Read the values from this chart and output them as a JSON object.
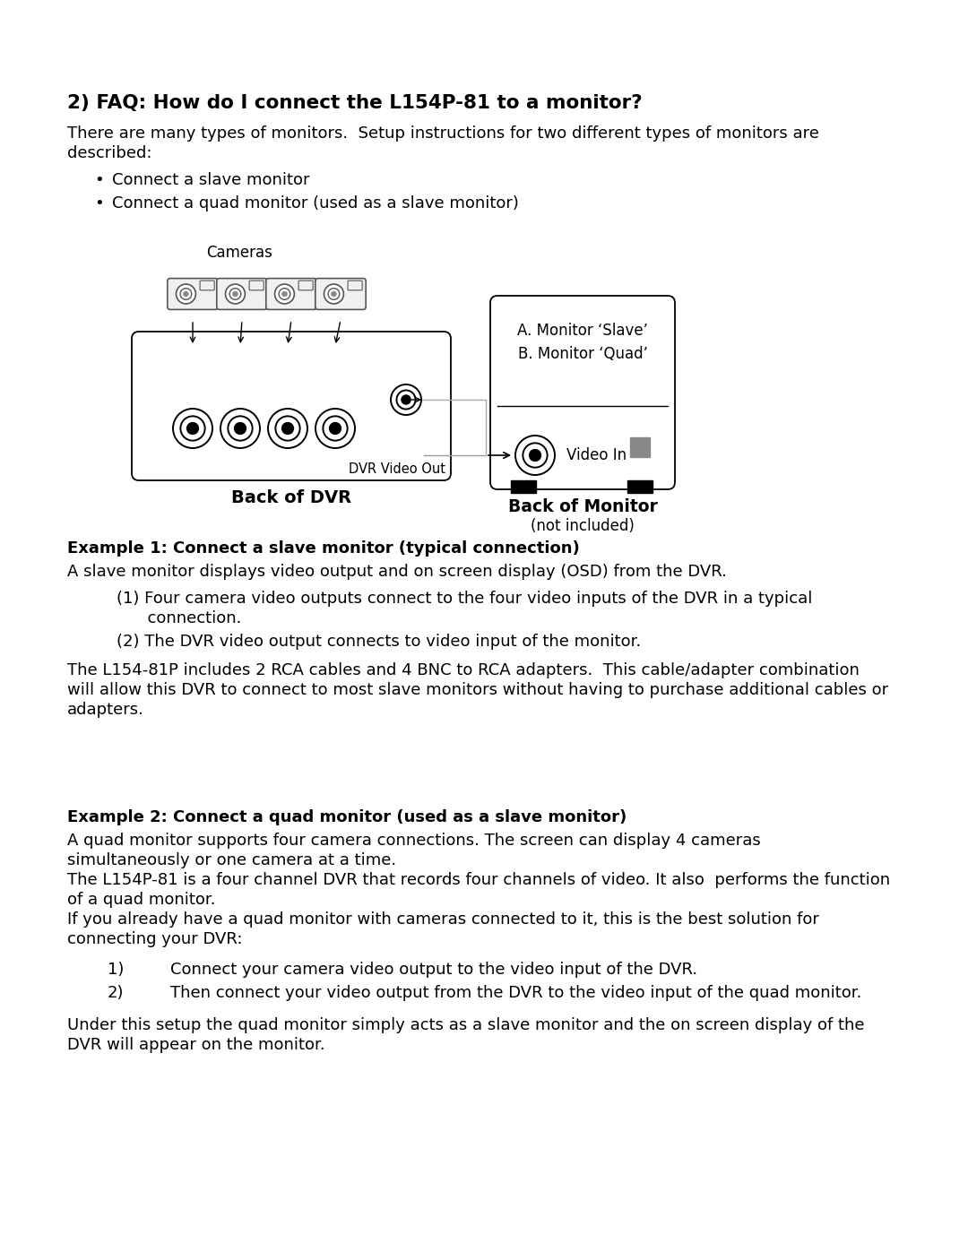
{
  "bg_color": "#ffffff",
  "title": "2) FAQ: How do I connect the L154P-81 to a monitor?",
  "intro_line1": "There are many types of monitors.  Setup instructions for two different types of monitors are",
  "intro_line2": "described:",
  "bullet1": "Connect a slave monitor",
  "bullet2": "Connect a quad monitor (used as a slave monitor)",
  "cameras_label": "Cameras",
  "dvr_video_out_label": "DVR Video Out",
  "back_dvr_label": "Back of DVR",
  "monitor_label_a": "A. Monitor ‘Slave’",
  "monitor_label_b": "B. Monitor ‘Quad’",
  "video_in_label": "Video In",
  "back_monitor_line1": "Back of Monitor",
  "back_monitor_line2": "(not included)",
  "ex1_title": "Example 1: Connect a slave monitor (typical connection)",
  "ex1_intro": "A slave monitor displays video output and on screen display (OSD) from the DVR.",
  "ex1_item1_line1": "(1) Four camera video outputs connect to the four video inputs of the DVR in a typical",
  "ex1_item1_line2": "      connection.",
  "ex1_item2": "(2) The DVR video output connects to video input of the monitor.",
  "ex1_para_line1": "The L154-81P includes 2 RCA cables and 4 BNC to RCA adapters.  This cable/adapter combination",
  "ex1_para_line2": "will allow this DVR to connect to most slave monitors without having to purchase additional cables or",
  "ex1_para_line3": "adapters.",
  "ex2_title": "Example 2: Connect a quad monitor (used as a slave monitor)",
  "ex2_intro_line1": "A quad monitor supports four camera connections. The screen can display 4 cameras",
  "ex2_intro_line2": "simultaneously or one camera at a time.",
  "ex2_intro_line3": "The L154P-81 is a four channel DVR that records four channels of video. It also  performs the function",
  "ex2_intro_line4": "of a quad monitor.",
  "ex2_intro_line5": "If you already have a quad monitor with cameras connected to it, this is the best solution for",
  "ex2_intro_line6": "connecting your DVR:",
  "ex2_item1": "Connect your camera video output to the video input of the DVR.",
  "ex2_item2": "Then connect your video output from the DVR to the video input of the quad monitor.",
  "ex2_para_line1": "Under this setup the quad monitor simply acts as a slave monitor and the on screen display of the",
  "ex2_para_line2": "DVR will appear on the monitor.",
  "font_color": "#000000"
}
